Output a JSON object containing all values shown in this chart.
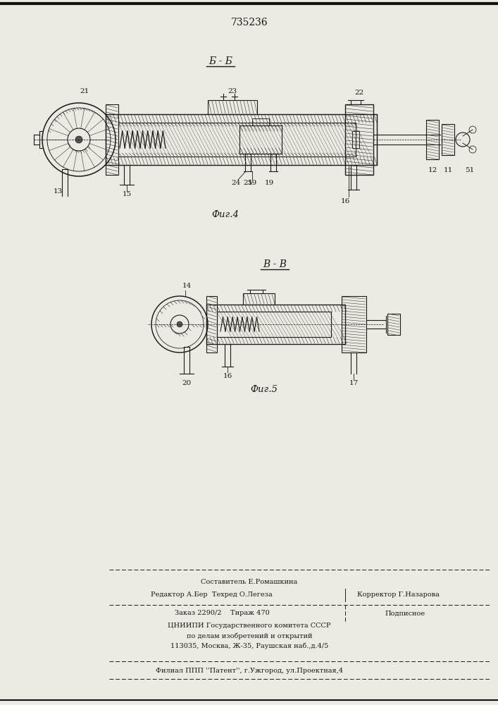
{
  "patent_number": "735236",
  "bg_color": "#ede9e3",
  "fig4_section_label": "Б - Б",
  "fig5_section_label": "В - В",
  "fig4_caption": "Фиг.4",
  "fig5_caption": "Фиг.5",
  "footer": {
    "line1": "Составитель Е.Ромашкина",
    "line2": "Редактор А.Бер  Техред О.Легеза       Корректор|Г.Назарова",
    "line3a": "Заказ 2290/2    Тираж 470",
    "line3b": "Подписное",
    "line4": "ЦНИИПИ Государственного комитета СССР",
    "line5": "по делам изобретений и открытий",
    "line6": "113035, Москва, Ж-35, Раушская наб.,д.4/5",
    "line7": "Филиал ППП ''Патент'', г.Ужгород, ул.Проектная,4"
  },
  "tc": "#1a1a1a",
  "hatch_color": "#333333",
  "line_color": "#222222"
}
